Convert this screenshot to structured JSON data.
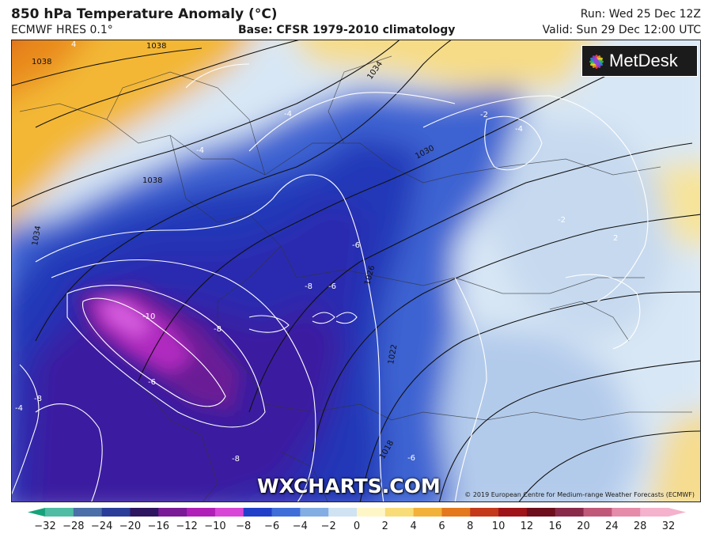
{
  "header": {
    "title": "850 hPa Temperature Anomaly (°C)",
    "model": "ECMWF HRES 0.1°",
    "base": "Base: CFSR 1979-2010 climatology",
    "run": "Run: Wed 25 Dec 12Z",
    "valid": "Valid: Sun 29 Dec 12:00 UTC"
  },
  "branding": {
    "logo": "MetDesk",
    "watermark": "WXCHARTS.COM",
    "copyright": "© 2019 European Centre for Medium-range Weather Forecasts (ECMWF)"
  },
  "isobar_labels": [
    "1038",
    "1038",
    "1038",
    "1034",
    "1030",
    "1026",
    "1022",
    "1018",
    "1034"
  ],
  "isotherm_labels": [
    "-10",
    "-8",
    "-8",
    "-8",
    "-8",
    "-6",
    "-6",
    "-6",
    "-6",
    "-4",
    "-4",
    "-4",
    "-2",
    "-2",
    "2",
    "4",
    "-4"
  ],
  "colorbar": {
    "ticks": [
      "−32",
      "−28",
      "−24",
      "−20",
      "−16",
      "−12",
      "−10",
      "−8",
      "−6",
      "−4",
      "−2",
      "0",
      "2",
      "4",
      "6",
      "8",
      "10",
      "12",
      "16",
      "20",
      "24",
      "28",
      "32"
    ],
    "colors": [
      "#16a37c",
      "#4fbca4",
      "#4b6fa8",
      "#2a3d98",
      "#2d1560",
      "#7a1a96",
      "#b020b8",
      "#d746d6",
      "#2140c9",
      "#3f6ed8",
      "#82aee4",
      "#cfe3f2",
      "#fff6c8",
      "#f8dc78",
      "#f2b13a",
      "#e4781c",
      "#c4391a",
      "#9e1418",
      "#6e0e1c",
      "#8a2a4a",
      "#c0587a",
      "#e48caa",
      "#f5b2cc"
    ]
  }
}
